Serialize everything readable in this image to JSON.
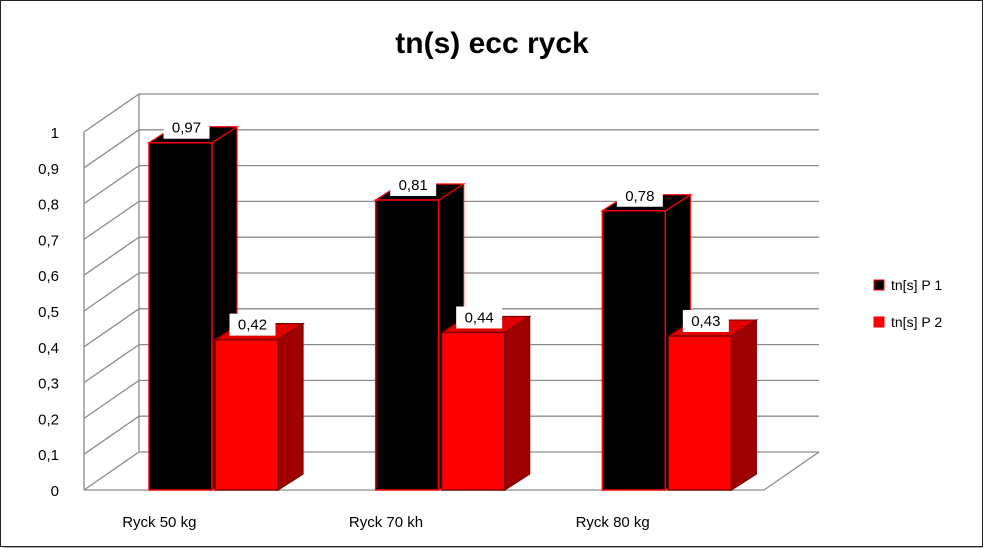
{
  "chart_data": {
    "type": "bar",
    "title": "tn(s) ecc ryck",
    "categories": [
      "Ryck  50 kg",
      "Ryck 70 kh",
      "Ryck 80 kg"
    ],
    "series": [
      {
        "name": "tn[s] P 1",
        "values": [
          0.97,
          0.81,
          0.78
        ],
        "value_labels": [
          "0,97",
          "0,81",
          "0,78"
        ],
        "color": "#000000",
        "side_color": "#000000",
        "top_color": "#000000",
        "edge_color": "#ff0000"
      },
      {
        "name": "tn[s] P 2",
        "values": [
          0.42,
          0.44,
          0.43
        ],
        "value_labels": [
          "0,42",
          "0,44",
          "0,43"
        ],
        "color": "#ff0000",
        "side_color": "#a00000",
        "top_color": "#e00000",
        "edge_color": "#7a0000"
      }
    ],
    "ylim": [
      0,
      1
    ],
    "yticks": [
      0,
      0.1,
      0.2,
      0.3,
      0.4,
      0.5,
      0.6,
      0.7,
      0.8,
      0.9,
      1
    ],
    "ytick_labels": [
      "0",
      "0,1",
      "0,2",
      "0,3",
      "0,4",
      "0,5",
      "0,6",
      "0,7",
      "0,8",
      "0,9",
      "1"
    ],
    "grid": true,
    "three_d": true,
    "legend_position": "right",
    "xlabel": "",
    "ylabel": ""
  }
}
